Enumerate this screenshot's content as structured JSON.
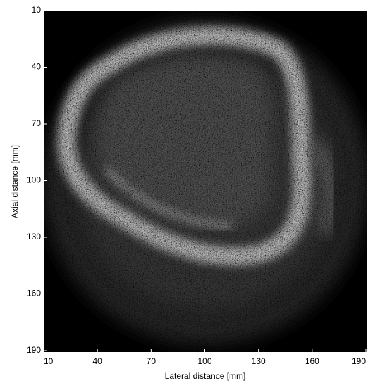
{
  "chart_data": {
    "type": "image",
    "x_label": "Lateral distance [mm]",
    "y_label": "Axial distance [mm]",
    "xlim": [
      10,
      190
    ],
    "xticks": [
      10,
      40,
      70,
      100,
      130,
      160,
      190
    ],
    "ylim": [
      10,
      190
    ],
    "yticks": [
      10,
      40,
      70,
      100,
      130,
      160,
      190
    ],
    "y_reversed": true,
    "colormap": "gray"
  }
}
